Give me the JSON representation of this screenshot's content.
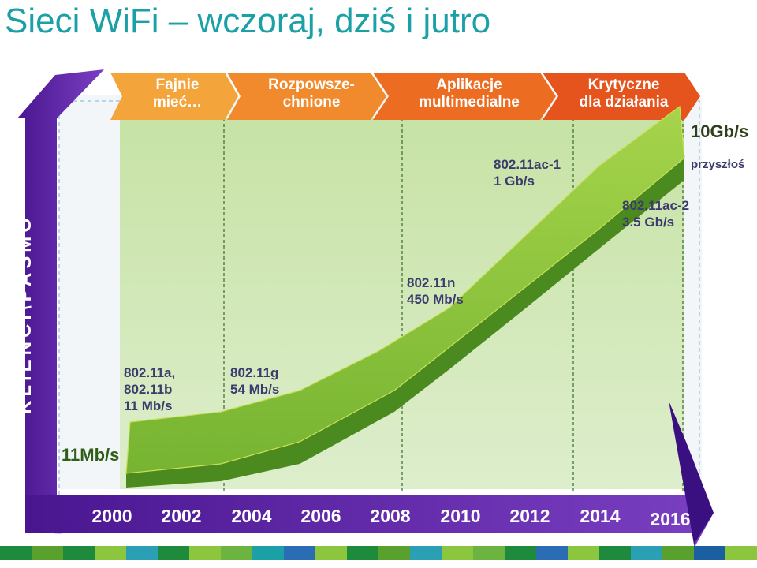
{
  "title": "Sieci WiFi – wczoraj, dziś i jutro",
  "y_axis_label": "KLIENCI\\PASMO",
  "phases": [
    {
      "lines": [
        "Fajnie",
        "mieć…"
      ],
      "color": "#f3a43a"
    },
    {
      "lines": [
        "Rozpowsze-",
        "chnione"
      ],
      "color": "#f08a2c"
    },
    {
      "lines": [
        "Aplikacje",
        "multimedialne"
      ],
      "color": "#ec6c21"
    },
    {
      "lines": [
        "Krytyczne",
        "dla działania"
      ],
      "color": "#e5541c"
    }
  ],
  "years": [
    "2000",
    "2002",
    "2004",
    "2006",
    "2008",
    "2010",
    "2012",
    "2014",
    "2016"
  ],
  "start_value": "11Mb/s",
  "end_value": "10Gb/s",
  "future_label": "przyszłoś",
  "standards": [
    {
      "lines": [
        "802.11a,",
        "802.11b",
        "11 Mb/s"
      ]
    },
    {
      "lines": [
        "802.11g",
        "54 Mb/s"
      ]
    },
    {
      "lines": [
        "802.11n",
        "450 Mb/s"
      ]
    },
    {
      "lines": [
        "802.11ac-1",
        "1 Gb/s"
      ]
    },
    {
      "lines": [
        "802.11ac-2",
        "3.5 Gb/s"
      ]
    }
  ],
  "colors": {
    "title": "#1ba0a6",
    "axis": "#5a1fa0",
    "band": "#6aa82c",
    "band_dark": "#4b8a1f",
    "text_dark": "#3b3b6d",
    "value_green": "#2f5f1a"
  },
  "footer_colors": [
    "#1e8a3c",
    "#5aa02c",
    "#1e8a3c",
    "#8cc63f",
    "#2ba0b5",
    "#1e8a3c",
    "#8cc63f",
    "#6db33f",
    "#1ba0a6",
    "#2b6db5",
    "#8cc63f",
    "#1e8a3c",
    "#5aa02c",
    "#2ba0b5",
    "#8cc63f",
    "#6db33f",
    "#1e8a3c",
    "#2b6db5",
    "#8cc63f",
    "#1e8a3c",
    "#2ba0b5",
    "#5aa02c",
    "#1b5fa0",
    "#8cc63f"
  ]
}
